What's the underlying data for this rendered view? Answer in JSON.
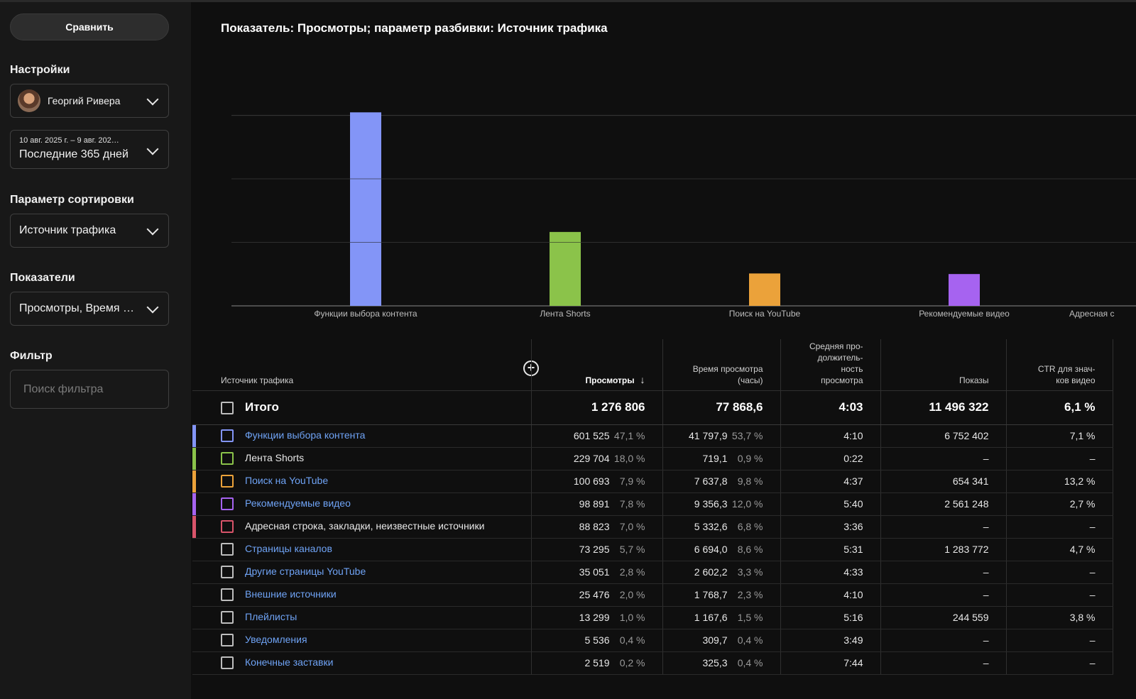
{
  "sidebar": {
    "compare_label": "Сравнить",
    "settings_label": "Настройки",
    "channel_name": "Георгий Ривера",
    "date_range_small": "10 авг. 2025 г. – 9 авг. 202…",
    "date_range_label": "Последние 365 дней",
    "sort_label": "Параметр сортировки",
    "sort_value": "Источник трафика",
    "metrics_label": "Показатели",
    "metrics_value": "Просмотры, Время …",
    "filter_label": "Фильтр",
    "filter_placeholder": "Поиск фильтра"
  },
  "chart_title": "Показатель: Просмотры; параметр разбивки: Источник трафика",
  "chart_data": {
    "type": "bar",
    "categories": [
      "Функции выбора контента",
      "Лента Shorts",
      "Поиск на YouTube",
      "Рекомендуемые видео",
      "Адресная с"
    ],
    "values": [
      601525,
      229704,
      100693,
      98891,
      88823
    ],
    "colors": [
      "#8395f7",
      "#8bc34a",
      "#eba23a",
      "#a663f0",
      "#d8546a"
    ],
    "ymax": 750000,
    "grid": true
  },
  "table": {
    "headers": {
      "source": "Источник трафика",
      "views": "Просмотры",
      "watch_time": [
        "Время просмотра",
        "(часы)"
      ],
      "avg_duration": [
        "Средняя про-",
        "должитель-",
        "ность",
        "просмотра"
      ],
      "impressions": "Показы",
      "ctr": [
        "CTR для знач-",
        "ков видео"
      ]
    },
    "total": {
      "label": "Итого",
      "views": "1 276 806",
      "watch_time": "77 868,6",
      "avg": "4:03",
      "impressions": "11 496 322",
      "ctr": "6,1 %"
    },
    "rows": [
      {
        "name": "Функции выбора контента",
        "link": true,
        "color": "#8395f7",
        "views": "601 525",
        "views_pct": "47,1 %",
        "watch": "41 797,9",
        "watch_pct": "53,7 %",
        "avg": "4:10",
        "impr": "6 752 402",
        "ctr": "7,1 %"
      },
      {
        "name": "Лента Shorts",
        "link": false,
        "color": "#8bc34a",
        "views": "229 704",
        "views_pct": "18,0 %",
        "watch": "719,1",
        "watch_pct": "0,9 %",
        "avg": "0:22",
        "impr": "–",
        "ctr": "–"
      },
      {
        "name": "Поиск на YouTube",
        "link": true,
        "color": "#eba23a",
        "views": "100 693",
        "views_pct": "7,9 %",
        "watch": "7 637,8",
        "watch_pct": "9,8 %",
        "avg": "4:37",
        "impr": "654 341",
        "ctr": "13,2 %"
      },
      {
        "name": "Рекомендуемые видео",
        "link": true,
        "color": "#a663f0",
        "views": "98 891",
        "views_pct": "7,8 %",
        "watch": "9 356,3",
        "watch_pct": "12,0 %",
        "avg": "5:40",
        "impr": "2 561 248",
        "ctr": "2,7 %"
      },
      {
        "name": "Адресная строка, закладки, неизвестные источники",
        "link": false,
        "color": "#d8546a",
        "views": "88 823",
        "views_pct": "7,0 %",
        "watch": "5 332,6",
        "watch_pct": "6,8 %",
        "avg": "3:36",
        "impr": "–",
        "ctr": "–"
      },
      {
        "name": "Страницы каналов",
        "link": true,
        "color": "",
        "views": "73 295",
        "views_pct": "5,7 %",
        "watch": "6 694,0",
        "watch_pct": "8,6 %",
        "avg": "5:31",
        "impr": "1 283 772",
        "ctr": "4,7 %"
      },
      {
        "name": "Другие страницы YouTube",
        "link": true,
        "color": "",
        "views": "35 051",
        "views_pct": "2,8 %",
        "watch": "2 602,2",
        "watch_pct": "3,3 %",
        "avg": "4:33",
        "impr": "–",
        "ctr": "–"
      },
      {
        "name": "Внешние источники",
        "link": true,
        "color": "",
        "views": "25 476",
        "views_pct": "2,0 %",
        "watch": "1 768,7",
        "watch_pct": "2,3 %",
        "avg": "4:10",
        "impr": "–",
        "ctr": "–"
      },
      {
        "name": "Плейлисты",
        "link": true,
        "color": "",
        "views": "13 299",
        "views_pct": "1,0 %",
        "watch": "1 167,6",
        "watch_pct": "1,5 %",
        "avg": "5:16",
        "impr": "244 559",
        "ctr": "3,8 %"
      },
      {
        "name": "Уведомления",
        "link": true,
        "color": "",
        "views": "5 536",
        "views_pct": "0,4 %",
        "watch": "309,7",
        "watch_pct": "0,4 %",
        "avg": "3:49",
        "impr": "–",
        "ctr": "–"
      },
      {
        "name": "Конечные заставки",
        "link": true,
        "color": "",
        "views": "2 519",
        "views_pct": "0,2 %",
        "watch": "325,3",
        "watch_pct": "0,4 %",
        "avg": "7:44",
        "impr": "–",
        "ctr": "–"
      }
    ]
  }
}
